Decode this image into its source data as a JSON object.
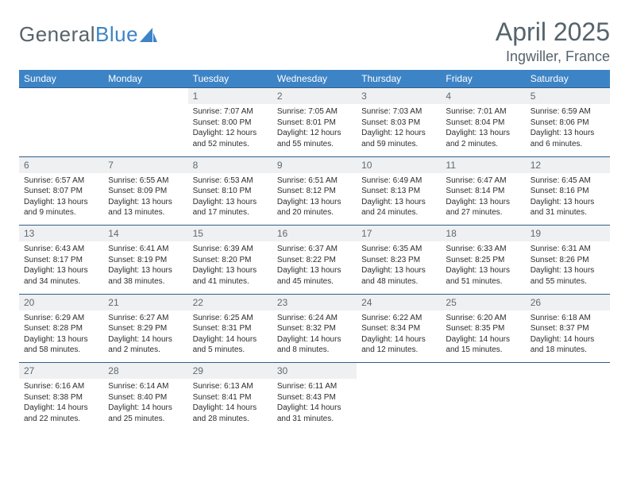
{
  "logo": {
    "text1": "General",
    "text2": "Blue"
  },
  "title": "April 2025",
  "location": "Ingwiller, France",
  "weekdays": [
    "Sunday",
    "Monday",
    "Tuesday",
    "Wednesday",
    "Thursday",
    "Friday",
    "Saturday"
  ],
  "colors": {
    "header_bg": "#3d84c6",
    "header_text": "#ffffff",
    "daynum_bg": "#eef0f1",
    "border": "#2f5e8a",
    "title_color": "#55636c"
  },
  "weeks": [
    [
      null,
      null,
      {
        "n": "1",
        "sr": "7:07 AM",
        "ss": "8:00 PM",
        "dl": "12 hours and 52 minutes."
      },
      {
        "n": "2",
        "sr": "7:05 AM",
        "ss": "8:01 PM",
        "dl": "12 hours and 55 minutes."
      },
      {
        "n": "3",
        "sr": "7:03 AM",
        "ss": "8:03 PM",
        "dl": "12 hours and 59 minutes."
      },
      {
        "n": "4",
        "sr": "7:01 AM",
        "ss": "8:04 PM",
        "dl": "13 hours and 2 minutes."
      },
      {
        "n": "5",
        "sr": "6:59 AM",
        "ss": "8:06 PM",
        "dl": "13 hours and 6 minutes."
      }
    ],
    [
      {
        "n": "6",
        "sr": "6:57 AM",
        "ss": "8:07 PM",
        "dl": "13 hours and 9 minutes."
      },
      {
        "n": "7",
        "sr": "6:55 AM",
        "ss": "8:09 PM",
        "dl": "13 hours and 13 minutes."
      },
      {
        "n": "8",
        "sr": "6:53 AM",
        "ss": "8:10 PM",
        "dl": "13 hours and 17 minutes."
      },
      {
        "n": "9",
        "sr": "6:51 AM",
        "ss": "8:12 PM",
        "dl": "13 hours and 20 minutes."
      },
      {
        "n": "10",
        "sr": "6:49 AM",
        "ss": "8:13 PM",
        "dl": "13 hours and 24 minutes."
      },
      {
        "n": "11",
        "sr": "6:47 AM",
        "ss": "8:14 PM",
        "dl": "13 hours and 27 minutes."
      },
      {
        "n": "12",
        "sr": "6:45 AM",
        "ss": "8:16 PM",
        "dl": "13 hours and 31 minutes."
      }
    ],
    [
      {
        "n": "13",
        "sr": "6:43 AM",
        "ss": "8:17 PM",
        "dl": "13 hours and 34 minutes."
      },
      {
        "n": "14",
        "sr": "6:41 AM",
        "ss": "8:19 PM",
        "dl": "13 hours and 38 minutes."
      },
      {
        "n": "15",
        "sr": "6:39 AM",
        "ss": "8:20 PM",
        "dl": "13 hours and 41 minutes."
      },
      {
        "n": "16",
        "sr": "6:37 AM",
        "ss": "8:22 PM",
        "dl": "13 hours and 45 minutes."
      },
      {
        "n": "17",
        "sr": "6:35 AM",
        "ss": "8:23 PM",
        "dl": "13 hours and 48 minutes."
      },
      {
        "n": "18",
        "sr": "6:33 AM",
        "ss": "8:25 PM",
        "dl": "13 hours and 51 minutes."
      },
      {
        "n": "19",
        "sr": "6:31 AM",
        "ss": "8:26 PM",
        "dl": "13 hours and 55 minutes."
      }
    ],
    [
      {
        "n": "20",
        "sr": "6:29 AM",
        "ss": "8:28 PM",
        "dl": "13 hours and 58 minutes."
      },
      {
        "n": "21",
        "sr": "6:27 AM",
        "ss": "8:29 PM",
        "dl": "14 hours and 2 minutes."
      },
      {
        "n": "22",
        "sr": "6:25 AM",
        "ss": "8:31 PM",
        "dl": "14 hours and 5 minutes."
      },
      {
        "n": "23",
        "sr": "6:24 AM",
        "ss": "8:32 PM",
        "dl": "14 hours and 8 minutes."
      },
      {
        "n": "24",
        "sr": "6:22 AM",
        "ss": "8:34 PM",
        "dl": "14 hours and 12 minutes."
      },
      {
        "n": "25",
        "sr": "6:20 AM",
        "ss": "8:35 PM",
        "dl": "14 hours and 15 minutes."
      },
      {
        "n": "26",
        "sr": "6:18 AM",
        "ss": "8:37 PM",
        "dl": "14 hours and 18 minutes."
      }
    ],
    [
      {
        "n": "27",
        "sr": "6:16 AM",
        "ss": "8:38 PM",
        "dl": "14 hours and 22 minutes."
      },
      {
        "n": "28",
        "sr": "6:14 AM",
        "ss": "8:40 PM",
        "dl": "14 hours and 25 minutes."
      },
      {
        "n": "29",
        "sr": "6:13 AM",
        "ss": "8:41 PM",
        "dl": "14 hours and 28 minutes."
      },
      {
        "n": "30",
        "sr": "6:11 AM",
        "ss": "8:43 PM",
        "dl": "14 hours and 31 minutes."
      },
      null,
      null,
      null
    ]
  ],
  "labels": {
    "sunrise": "Sunrise: ",
    "sunset": "Sunset: ",
    "daylight": "Daylight: "
  }
}
